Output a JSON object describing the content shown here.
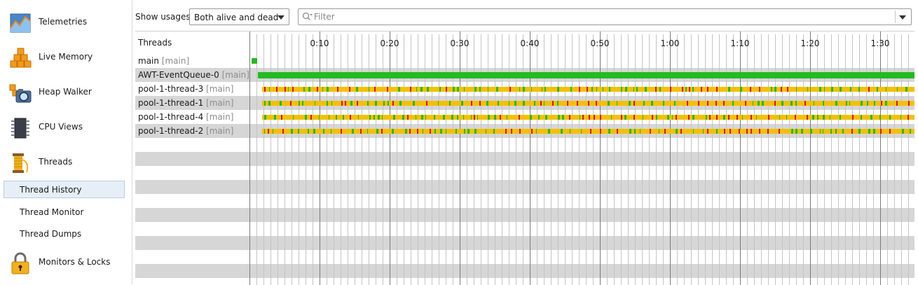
{
  "sidebar": {
    "sections": [
      {
        "label": "Telemetries",
        "icon": "telemetries-icon"
      },
      {
        "label": "Live Memory",
        "icon": "live-memory-icon"
      },
      {
        "label": "Heap Walker",
        "icon": "heap-walker-icon"
      },
      {
        "label": "CPU Views",
        "icon": "cpu-views-icon"
      },
      {
        "label": "Threads",
        "icon": "threads-icon"
      },
      {
        "label": "Monitors & Locks",
        "icon": "monitors-locks-icon"
      }
    ],
    "thread_views": [
      {
        "label": "Thread History",
        "selected": true
      },
      {
        "label": "Thread Monitor",
        "selected": false
      },
      {
        "label": "Thread Dumps",
        "selected": false
      }
    ]
  },
  "toolbar": {
    "usages_label": "Show usages:",
    "usages_value": "Both alive and dead",
    "filter_placeholder": "Filter"
  },
  "timeline": {
    "header": "Threads",
    "ticks": [
      "0:10",
      "0:20",
      "0:30",
      "0:40",
      "0:50",
      "1:00",
      "1:10",
      "1:20",
      "1:30"
    ],
    "state_colors": {
      "runnable": "#22bb22",
      "waiting": "#f5c000",
      "blocked": "#dd1111"
    },
    "threads": [
      {
        "name": "main",
        "group": "[main]"
      },
      {
        "name": "AWT-EventQueue-0",
        "group": "[main]"
      },
      {
        "name": "pool-1-thread-3",
        "group": "[main]"
      },
      {
        "name": "pool-1-thread-1",
        "group": "[main]"
      },
      {
        "name": "pool-1-thread-4",
        "group": "[main]"
      },
      {
        "name": "pool-1-thread-2",
        "group": "[main]"
      }
    ]
  }
}
